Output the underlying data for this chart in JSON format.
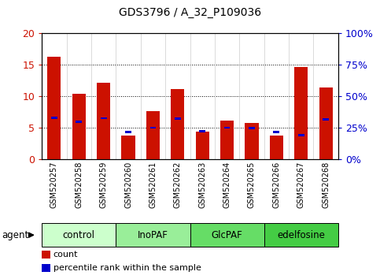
{
  "title": "GDS3796 / A_32_P109036",
  "samples": [
    "GSM520257",
    "GSM520258",
    "GSM520259",
    "GSM520260",
    "GSM520261",
    "GSM520262",
    "GSM520263",
    "GSM520264",
    "GSM520265",
    "GSM520266",
    "GSM520267",
    "GSM520268"
  ],
  "counts": [
    16.3,
    10.4,
    12.2,
    3.8,
    7.6,
    11.1,
    4.4,
    6.1,
    5.8,
    3.8,
    14.6,
    11.4
  ],
  "percentiles": [
    33.0,
    29.5,
    32.5,
    21.5,
    25.0,
    32.0,
    22.0,
    25.0,
    24.5,
    21.5,
    19.0,
    31.5
  ],
  "ylim_left": [
    0,
    20
  ],
  "ylim_right": [
    0,
    100
  ],
  "yticks_left": [
    0,
    5,
    10,
    15,
    20
  ],
  "yticks_right": [
    0,
    25,
    50,
    75,
    100
  ],
  "ytick_labels_left": [
    "0",
    "5",
    "10",
    "15",
    "20"
  ],
  "ytick_labels_right": [
    "0%",
    "25%",
    "50%",
    "75%",
    "100%"
  ],
  "groups": [
    {
      "label": "control",
      "start": 0,
      "end": 3,
      "color": "#ccffcc"
    },
    {
      "label": "InoPAF",
      "start": 3,
      "end": 6,
      "color": "#99ee99"
    },
    {
      "label": "GlcPAF",
      "start": 6,
      "end": 9,
      "color": "#66dd66"
    },
    {
      "label": "edelfosine",
      "start": 9,
      "end": 12,
      "color": "#44cc44"
    }
  ],
  "bar_color": "#cc1100",
  "percentile_color": "#0000cc",
  "bg_color": "#ffffff",
  "left_tick_color": "#cc1100",
  "right_tick_color": "#0000cc",
  "legend_items": [
    {
      "label": "count",
      "color": "#cc1100"
    },
    {
      "label": "percentile rank within the sample",
      "color": "#0000cc"
    }
  ]
}
